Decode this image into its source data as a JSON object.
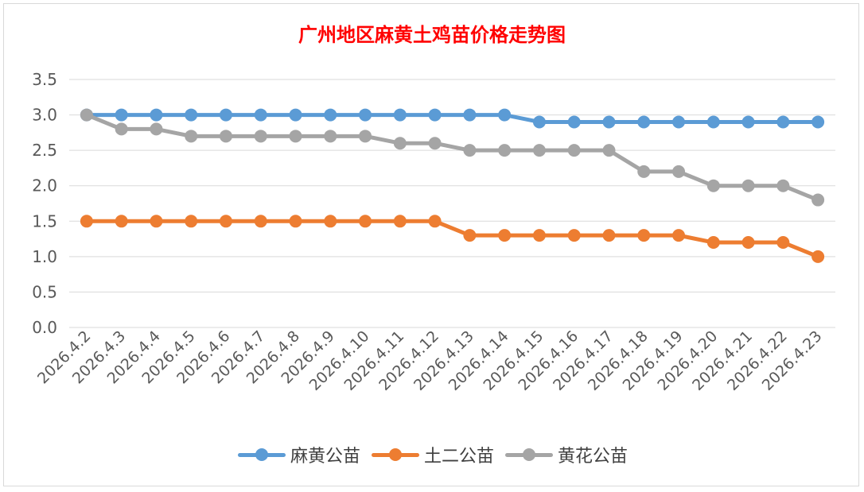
{
  "chart_data": {
    "type": "line",
    "title": "广州地区麻黄土鸡苗价格走势图",
    "xlabel": "",
    "ylabel": "",
    "ylim": [
      0,
      3.5
    ],
    "yticks": [
      "0.0",
      "0.5",
      "1.0",
      "1.5",
      "2.0",
      "2.5",
      "3.0",
      "3.5"
    ],
    "grid": true,
    "legend_position": "bottom",
    "categories": [
      "2026.4.2",
      "2026.4.3",
      "2026.4.4",
      "2026.4.5",
      "2026.4.6",
      "2026.4.7",
      "2026.4.8",
      "2026.4.9",
      "2026.4.10",
      "2026.4.11",
      "2026.4.12",
      "2026.4.13",
      "2026.4.14",
      "2026.4.15",
      "2026.4.16",
      "2026.4.17",
      "2026.4.18",
      "2026.4.19",
      "2026.4.20",
      "2026.4.21",
      "2026.4.22",
      "2026.4.23"
    ],
    "series": [
      {
        "name": "麻黄公苗",
        "color": "#5b9bd5",
        "values": [
          3.0,
          3.0,
          3.0,
          3.0,
          3.0,
          3.0,
          3.0,
          3.0,
          3.0,
          3.0,
          3.0,
          3.0,
          3.0,
          2.9,
          2.9,
          2.9,
          2.9,
          2.9,
          2.9,
          2.9,
          2.9,
          2.9
        ]
      },
      {
        "name": "土二公苗",
        "color": "#ed7d31",
        "values": [
          1.5,
          1.5,
          1.5,
          1.5,
          1.5,
          1.5,
          1.5,
          1.5,
          1.5,
          1.5,
          1.5,
          1.3,
          1.3,
          1.3,
          1.3,
          1.3,
          1.3,
          1.3,
          1.2,
          1.2,
          1.2,
          1.0
        ]
      },
      {
        "name": "黄花公苗",
        "color": "#a5a5a5",
        "values": [
          3.0,
          2.8,
          2.8,
          2.7,
          2.7,
          2.7,
          2.7,
          2.7,
          2.7,
          2.6,
          2.6,
          2.5,
          2.5,
          2.5,
          2.5,
          2.5,
          2.2,
          2.2,
          2.0,
          2.0,
          2.0,
          1.8
        ]
      }
    ]
  }
}
